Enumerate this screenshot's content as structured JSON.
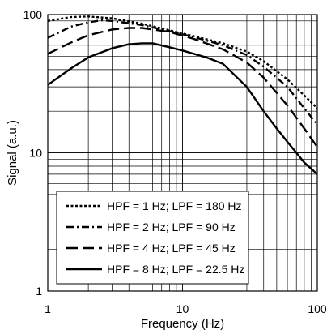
{
  "chart_data": {
    "type": "line",
    "xlabel": "Frequency (Hz)",
    "ylabel": "Signal (a.u.)",
    "x_scale": "log",
    "y_scale": "log",
    "xlim": [
      1,
      100
    ],
    "ylim": [
      1,
      100
    ],
    "x_ticks": [
      1,
      10,
      100
    ],
    "y_ticks": [
      1,
      10,
      100
    ],
    "x_tick_labels": [
      "1",
      "10",
      "100"
    ],
    "y_tick_labels": [
      "1",
      "10",
      "100"
    ],
    "grid": true,
    "legend_position": "bottom-left",
    "series": [
      {
        "name": "HPF = 1 Hz; LPF = 180 Hz",
        "dash": "dotted",
        "points": [
          [
            1,
            90
          ],
          [
            1.5,
            96
          ],
          [
            2,
            97
          ],
          [
            3,
            94
          ],
          [
            5,
            86
          ],
          [
            8,
            77
          ],
          [
            12,
            70
          ],
          [
            20,
            62
          ],
          [
            30,
            54
          ],
          [
            40,
            46
          ],
          [
            60,
            34
          ],
          [
            80,
            26
          ],
          [
            100,
            21
          ]
        ]
      },
      {
        "name": "HPF = 2 Hz; LPF = 90 Hz",
        "dash": "dash-dot",
        "points": [
          [
            1,
            68
          ],
          [
            1.5,
            82
          ],
          [
            2,
            88
          ],
          [
            2.5,
            91
          ],
          [
            3,
            90
          ],
          [
            5,
            84
          ],
          [
            8,
            76
          ],
          [
            12,
            69
          ],
          [
            20,
            60
          ],
          [
            30,
            51
          ],
          [
            40,
            42
          ],
          [
            60,
            30
          ],
          [
            80,
            21
          ],
          [
            100,
            16
          ]
        ]
      },
      {
        "name": "HPF = 4 Hz; LPF = 45 Hz",
        "dash": "dashed",
        "points": [
          [
            1,
            52
          ],
          [
            1.5,
            63
          ],
          [
            2,
            71
          ],
          [
            3,
            78
          ],
          [
            4,
            80
          ],
          [
            5,
            80
          ],
          [
            8,
            75
          ],
          [
            12,
            67
          ],
          [
            20,
            56
          ],
          [
            30,
            45
          ],
          [
            40,
            35
          ],
          [
            60,
            22
          ],
          [
            80,
            15
          ],
          [
            100,
            11
          ]
        ]
      },
      {
        "name": "HPF = 8 Hz; LPF = 22.5 Hz",
        "dash": "solid",
        "points": [
          [
            1,
            31
          ],
          [
            1.5,
            41
          ],
          [
            2,
            49
          ],
          [
            3,
            57
          ],
          [
            4,
            61
          ],
          [
            5,
            62
          ],
          [
            6,
            62
          ],
          [
            8,
            58
          ],
          [
            10,
            55
          ],
          [
            15,
            49
          ],
          [
            20,
            44
          ],
          [
            30,
            30
          ],
          [
            40,
            20
          ],
          [
            50,
            15
          ],
          [
            60,
            12
          ],
          [
            70,
            10
          ],
          [
            80,
            8.5
          ],
          [
            100,
            7
          ]
        ]
      }
    ]
  }
}
